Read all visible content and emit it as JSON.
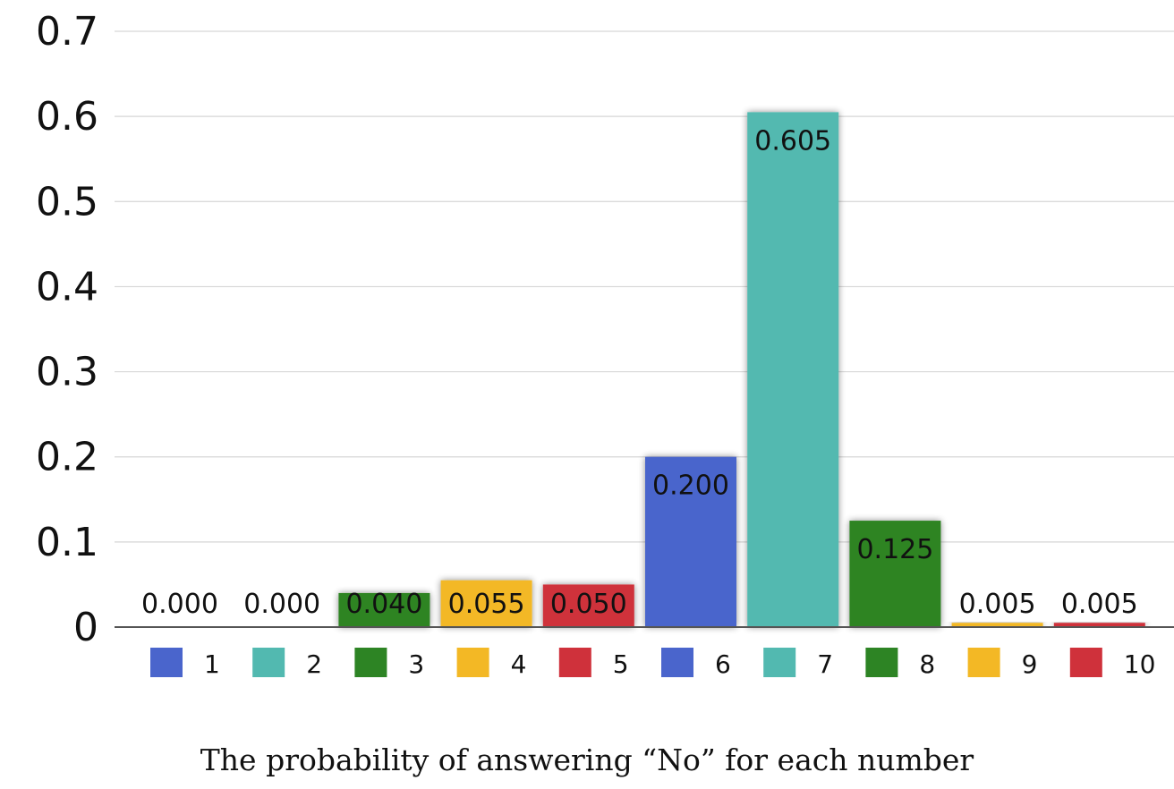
{
  "chart_data": {
    "type": "bar",
    "categories": [
      "1",
      "2",
      "3",
      "4",
      "5",
      "6",
      "7",
      "8",
      "9",
      "10"
    ],
    "values": [
      0.0,
      0.0,
      0.04,
      0.055,
      0.05,
      0.2,
      0.605,
      0.125,
      0.005,
      0.005
    ],
    "data_labels": [
      "0.000",
      "0.000",
      "0.040",
      "0.055",
      "0.050",
      "0.200",
      "0.605",
      "0.125",
      "0.005",
      "0.005"
    ],
    "colors": [
      "#4a65cc",
      "#52b9b0",
      "#2d8424",
      "#f3b825",
      "#cf313b",
      "#4a65cc",
      "#52b9b0",
      "#2d8424",
      "#f3b825",
      "#cf313b"
    ],
    "title": "",
    "xlabel": "The probability of answering “No” for each number",
    "ylabel": "",
    "ylim": [
      0,
      0.7
    ],
    "yticks": [
      "0",
      "0.1",
      "0.2",
      "0.3",
      "0.4",
      "0.5",
      "0.6",
      "0.7"
    ],
    "grid": true,
    "legend": {
      "position": "bottom",
      "entries": [
        "1",
        "2",
        "3",
        "4",
        "5",
        "6",
        "7",
        "8",
        "9",
        "10"
      ]
    }
  }
}
